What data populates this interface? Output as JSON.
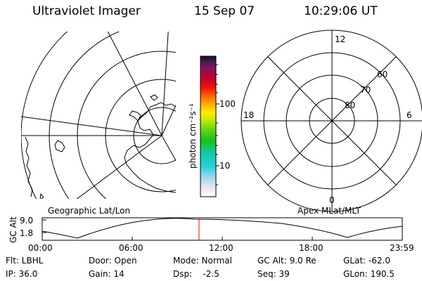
{
  "header": {
    "title": "Ultraviolet Imager",
    "date": "15 Sep 07",
    "time": "10:29:06 UT"
  },
  "left_map": {
    "caption": "Geographic Lat/Lon"
  },
  "right_map": {
    "caption": "Apex MLat/MLT",
    "mlt_labels": {
      "top": "12",
      "left": "18",
      "right": "6",
      "bottom": "0"
    },
    "mlat_labels": [
      "60",
      "70",
      "80"
    ]
  },
  "colorbar": {
    "label": "photon cm⁻²s⁻¹",
    "ticks": [
      "100",
      "10"
    ]
  },
  "altitude_plot": {
    "label": "GC Alt",
    "yticks": [
      "9.0",
      "1.8"
    ],
    "xticks": [
      "00:00",
      "06:00",
      "12:00",
      "18:00",
      "23:59"
    ],
    "marker_color": "#ff0000"
  },
  "info": {
    "flt": "Flt: LBHL",
    "ip": "IP: 36.0",
    "door": "Door: Open",
    "gain": "Gain: 14",
    "mode": "Mode: Normal",
    "dsp": "Dsp:    -2.5",
    "gcalt": "GC Alt: 9.0 Re",
    "seq": "Seq: 39",
    "glat": "GLat: -62.0",
    "glon": "GLon: 190.5"
  }
}
